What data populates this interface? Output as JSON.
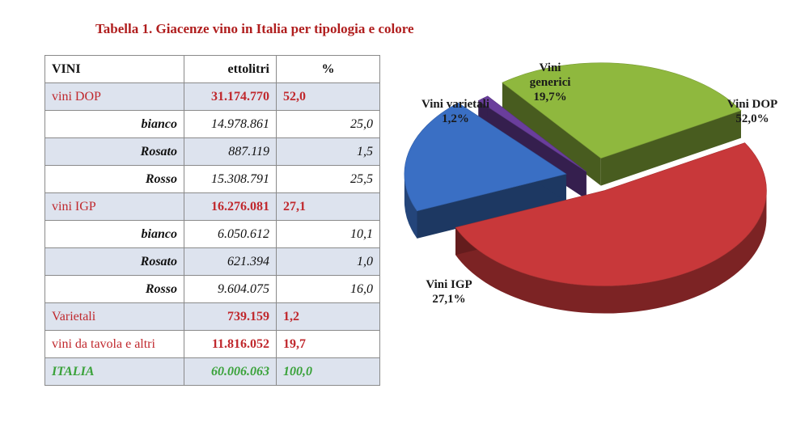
{
  "title": "Tabella 1. Giacenze vino in Italia per tipologia e colore",
  "table": {
    "headers": [
      "VINI",
      "ettolitri",
      "%"
    ],
    "rows": [
      {
        "kind": "group",
        "label": "vini DOP",
        "value": "31.174.770",
        "pct": "52,0"
      },
      {
        "kind": "sub",
        "label": "bianco",
        "value": "14.978.861",
        "pct": "25,0"
      },
      {
        "kind": "sub shade",
        "label": "Rosato",
        "value": "887.119",
        "pct": "1,5"
      },
      {
        "kind": "sub",
        "label": "Rosso",
        "value": "15.308.791",
        "pct": "25,5"
      },
      {
        "kind": "group",
        "label": "vini IGP",
        "value": "16.276.081",
        "pct": "27,1"
      },
      {
        "kind": "sub",
        "label": "bianco",
        "value": "6.050.612",
        "pct": "10,1"
      },
      {
        "kind": "sub shade",
        "label": "Rosato",
        "value": "621.394",
        "pct": "1,0"
      },
      {
        "kind": "sub",
        "label": "Rosso",
        "value": "9.604.075",
        "pct": "16,0"
      },
      {
        "kind": "group",
        "label": "Varietali",
        "value": "739.159",
        "pct": "1,2"
      },
      {
        "kind": "group white",
        "label": "vini da tavola e altri",
        "value": "11.816.052",
        "pct": "19,7"
      },
      {
        "kind": "total",
        "label": "ITALIA",
        "value": "60.006.063",
        "pct": "100,0"
      }
    ]
  },
  "chart_data": {
    "type": "pie",
    "slices": [
      {
        "label": "Vini DOP",
        "value": 52.0,
        "pct_label": "52,0%",
        "color": "#c8383a"
      },
      {
        "label": "Vini generici",
        "value": 19.7,
        "pct_label": "19,7%",
        "color": "#3a6fc4"
      },
      {
        "label": "Vini varietali",
        "value": 1.2,
        "pct_label": "1,2%",
        "color": "#6a3e9c"
      },
      {
        "label": "Vini IGP",
        "value": 27.1,
        "pct_label": "27,1%",
        "color": "#8fb83e"
      }
    ]
  }
}
